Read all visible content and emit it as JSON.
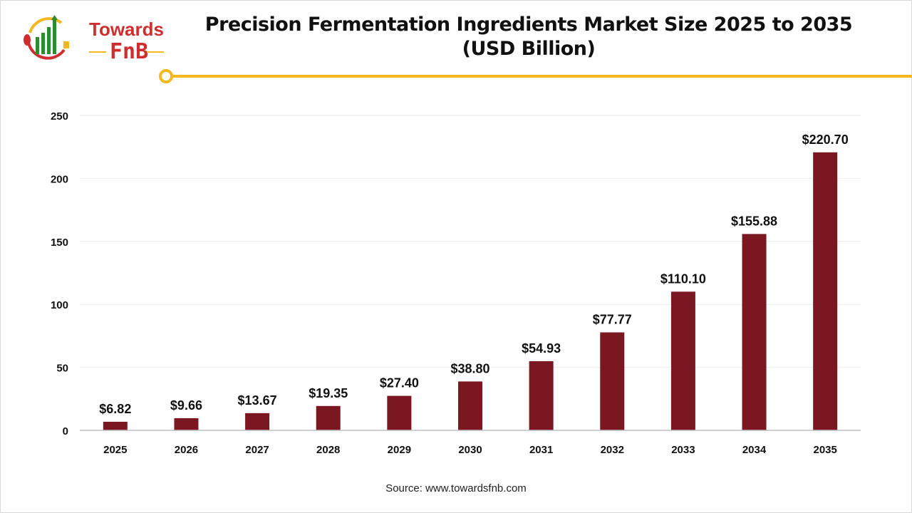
{
  "logo": {
    "line1": "Towards",
    "line2": "FnB"
  },
  "title": "Precision Fermentation Ingredients Market Size 2025 to 2035",
  "subtitle": "(USD Billion)",
  "source": "Source: www.towardsfnb.com",
  "colors": {
    "bar": "#7b1721",
    "accent": "#f5b820",
    "logo_red": "#cf2e2e",
    "logo_green": "#2e8b2e"
  },
  "chart_data": {
    "type": "bar",
    "title": "Precision Fermentation Ingredients Market Size 2025 to 2035 (USD Billion)",
    "categories": [
      "2025",
      "2026",
      "2027",
      "2028",
      "2029",
      "2030",
      "2031",
      "2032",
      "2033",
      "2034",
      "2035"
    ],
    "values": [
      6.82,
      9.66,
      13.67,
      19.35,
      27.4,
      38.8,
      54.93,
      77.77,
      110.1,
      155.88,
      220.7
    ],
    "data_labels": [
      "$6.82",
      "$9.66",
      "$13.67",
      "$19.35",
      "$27.40",
      "$38.80",
      "$54.93",
      "$77.77",
      "$110.10",
      "$155.88",
      "$220.70"
    ],
    "ylim": [
      0,
      250
    ],
    "yticks": [
      0,
      50,
      100,
      150,
      200,
      250
    ],
    "grid": true,
    "xlabel": "",
    "ylabel": ""
  }
}
